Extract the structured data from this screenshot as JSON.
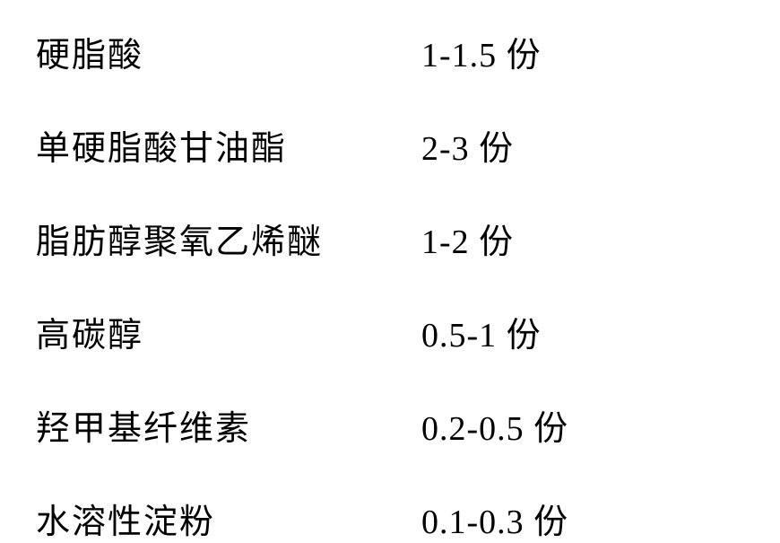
{
  "table": {
    "rows": [
      {
        "label": "硬脂酸",
        "value": "1-1.5 份"
      },
      {
        "label": "单硬脂酸甘油酯",
        "value": "2-3 份"
      },
      {
        "label": "脂肪醇聚氧乙烯醚",
        "value": "1-2 份"
      },
      {
        "label": "高碳醇",
        "value": "0.5-1 份"
      },
      {
        "label": "羟甲基纤维素",
        "value": "0.2-0.5 份"
      },
      {
        "label": "水溶性淀粉",
        "value": "0.1-0.3 份"
      }
    ],
    "styling": {
      "font_size": 38,
      "label_width": 430,
      "row_gap": 49,
      "background_color": "#ffffff",
      "text_color": "#000000",
      "font_family": "SimSun"
    }
  }
}
